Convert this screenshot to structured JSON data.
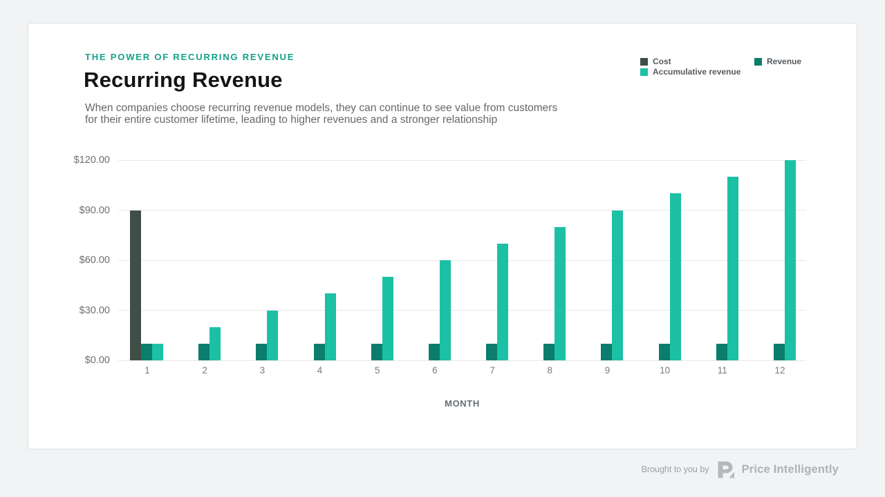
{
  "header": {
    "eyebrow": "THE POWER OF RECURRING REVENUE",
    "title": "Recurring Revenue",
    "subtitle_line1": "When companies choose recurring revenue models, they can continue to see value from customers",
    "subtitle_line2": "for their entire customer lifetime, leading to higher revenues and a stronger relationship"
  },
  "legend": [
    {
      "label": "Cost",
      "color": "#3f4f48"
    },
    {
      "label": "Revenue",
      "color": "#0c7d6c"
    },
    {
      "label": "Accumulative revenue",
      "color": "#1cc0a5"
    }
  ],
  "chart_data": {
    "type": "bar",
    "title": "Recurring Revenue",
    "xlabel": "MONTH",
    "ylabel": "",
    "categories": [
      "1",
      "2",
      "3",
      "4",
      "5",
      "6",
      "7",
      "8",
      "9",
      "10",
      "11",
      "12"
    ],
    "series": [
      {
        "name": "Cost",
        "color": "#3f4f48",
        "values": [
          90,
          0,
          0,
          0,
          0,
          0,
          0,
          0,
          0,
          0,
          0,
          0
        ]
      },
      {
        "name": "Revenue",
        "color": "#0c7d6c",
        "values": [
          10,
          10,
          10,
          10,
          10,
          10,
          10,
          10,
          10,
          10,
          10,
          10
        ]
      },
      {
        "name": "Accumulative revenue",
        "color": "#1cc0a5",
        "values": [
          10,
          20,
          30,
          40,
          50,
          60,
          70,
          80,
          90,
          100,
          110,
          120
        ]
      }
    ],
    "ylim": [
      0,
      120
    ],
    "yticks": [
      {
        "value": 0,
        "label": "$0.00"
      },
      {
        "value": 30,
        "label": "$30.00"
      },
      {
        "value": 60,
        "label": "$60.00"
      },
      {
        "value": 90,
        "label": "$90.00"
      },
      {
        "value": 120,
        "label": "$120.00"
      }
    ],
    "grid": true,
    "legend_position": "top-right"
  },
  "footer": {
    "brought_by": "Brought to you by",
    "brand": "Price Intelligently"
  },
  "colors": {
    "page_background": "#f2f3f5",
    "card_background": "#ffffff",
    "accent_teal": "#13a189",
    "gridline": "#e7e8e9"
  }
}
